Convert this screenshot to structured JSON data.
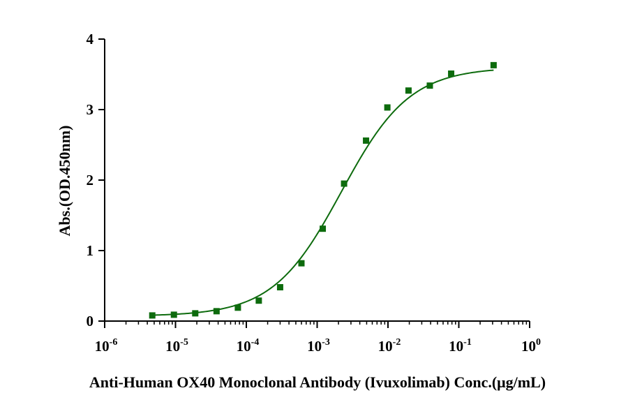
{
  "chart_data": {
    "type": "scatter",
    "xlabel": "Anti-Human OX40 Monoclonal Antibody (Ivuxolimab) Conc.(μg/mL)",
    "ylabel": "Abs.(OD.450nm)",
    "x_scale": "log",
    "xlim": [
      1e-06,
      1
    ],
    "ylim": [
      0,
      4
    ],
    "x_tick_labels": [
      {
        "base": "10",
        "exp": "-6"
      },
      {
        "base": "10",
        "exp": "-5"
      },
      {
        "base": "10",
        "exp": "-4"
      },
      {
        "base": "10",
        "exp": "-3"
      },
      {
        "base": "10",
        "exp": "-2"
      },
      {
        "base": "10",
        "exp": "-1"
      },
      {
        "base": "10",
        "exp": "0"
      }
    ],
    "y_ticks": [
      0,
      1,
      2,
      3,
      4
    ],
    "y_tick_labels": [
      "0",
      "1",
      "2",
      "3",
      "4"
    ],
    "grid": false,
    "colors": {
      "series": "#0d6b0d",
      "axis": "#000000"
    },
    "series": [
      {
        "marker": "square",
        "x": [
          4.7e-06,
          9.5e-06,
          1.9e-05,
          3.8e-05,
          7.6e-05,
          0.00015,
          0.0003,
          0.0006,
          0.0012,
          0.0024,
          0.0049,
          0.0098,
          0.0195,
          0.039,
          0.078,
          0.31
        ],
        "y": [
          0.08,
          0.09,
          0.11,
          0.14,
          0.19,
          0.29,
          0.48,
          0.82,
          1.31,
          1.95,
          2.56,
          3.03,
          3.27,
          3.34,
          3.51,
          3.63
        ]
      }
    ],
    "fit_curve": {
      "model": "4PL",
      "bottom": 0.07,
      "top": 3.6,
      "ec50": 0.0022,
      "hill": 0.9
    }
  }
}
